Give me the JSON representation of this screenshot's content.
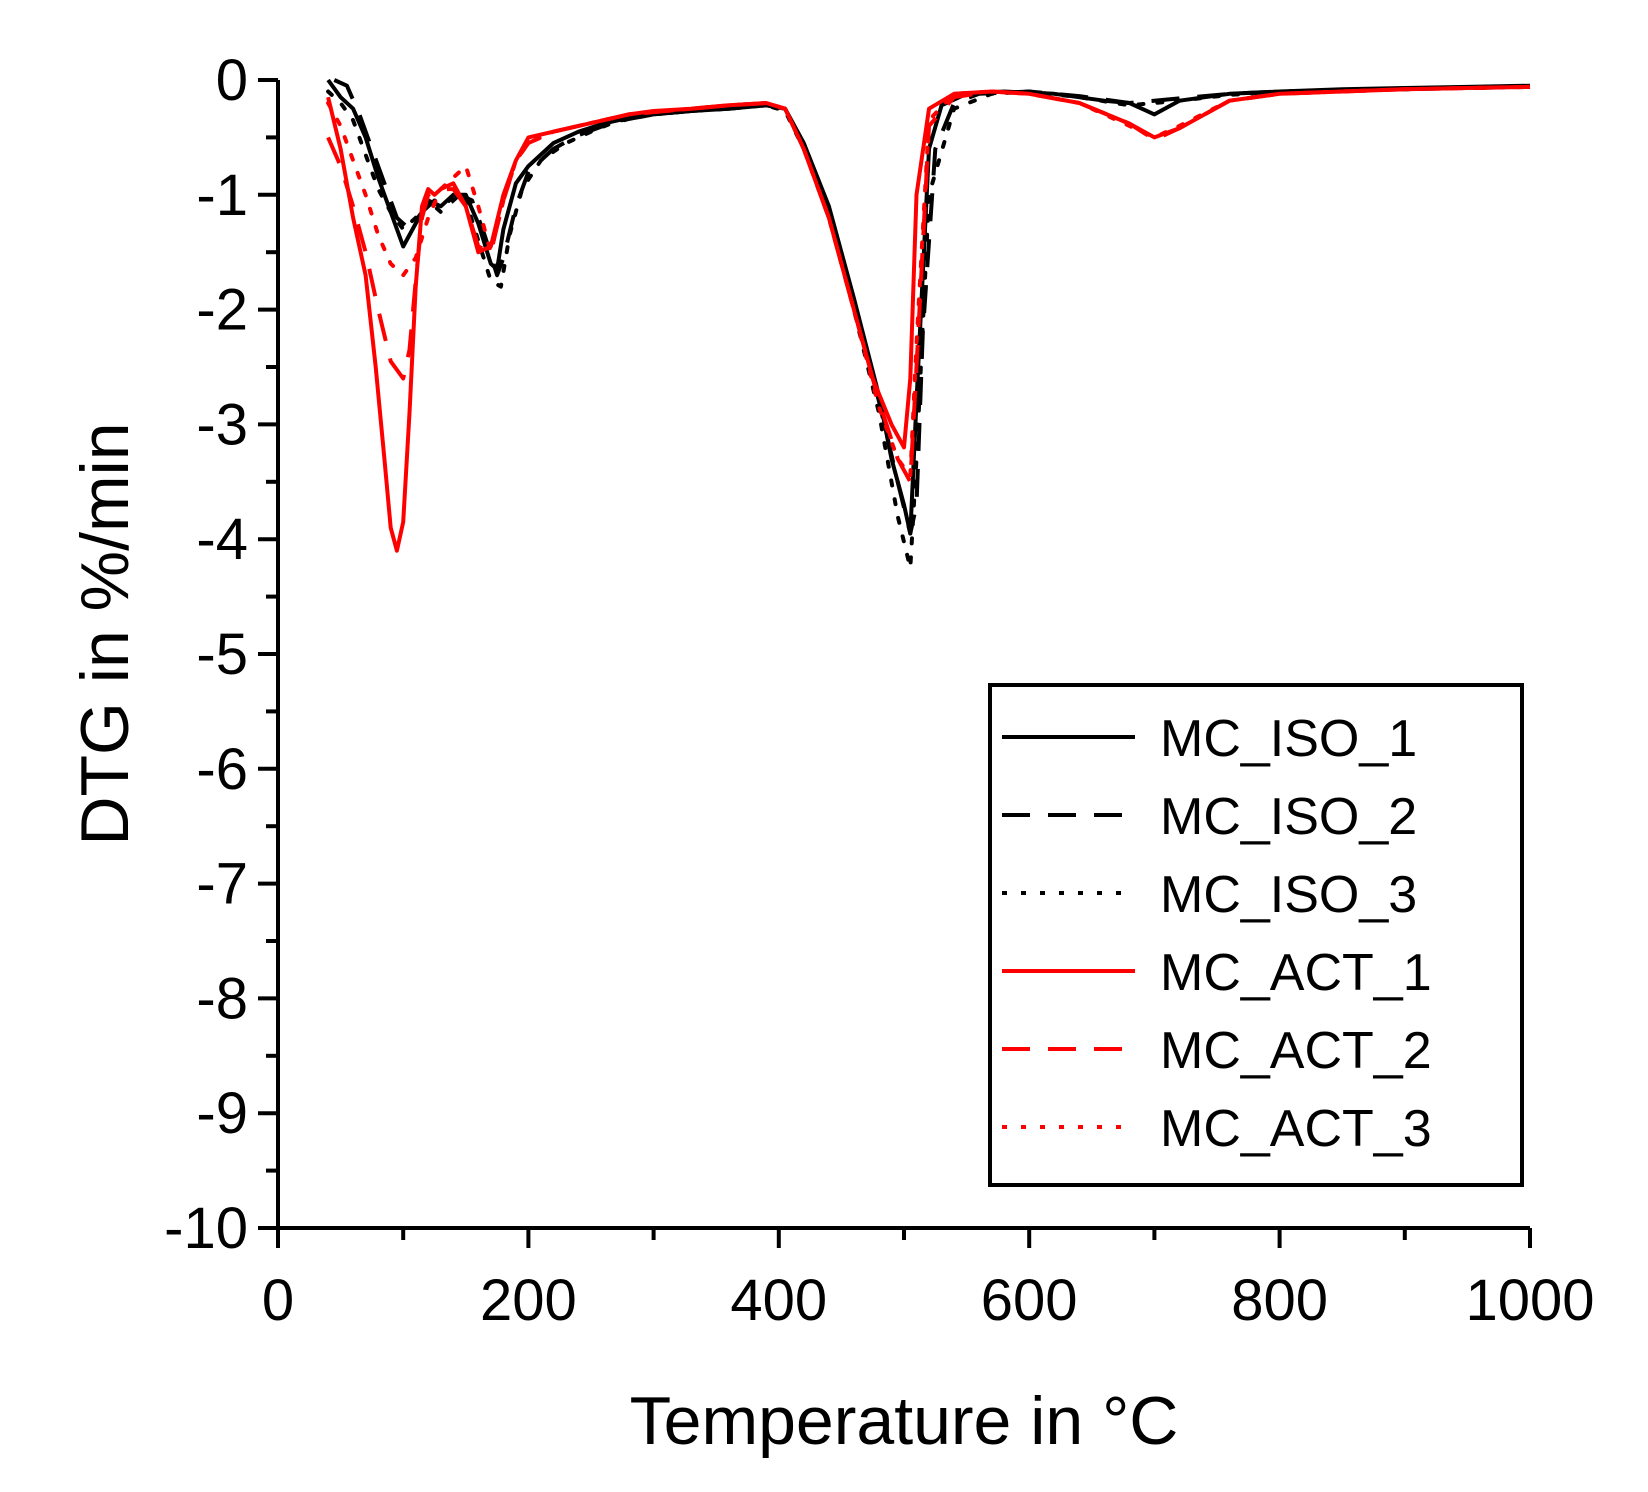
{
  "chart_data": {
    "type": "line",
    "title": "",
    "xlabel": "Temperature in °C",
    "ylabel": "DTG in %/min",
    "xlim": [
      0,
      1000
    ],
    "ylim": [
      -10,
      0
    ],
    "xticks": [
      0,
      200,
      400,
      600,
      800,
      1000
    ],
    "yticks": [
      0,
      -1,
      -2,
      -3,
      -4,
      -5,
      -6,
      -7,
      -8,
      -9,
      -10
    ],
    "legend_position": "bottom-right",
    "series": [
      {
        "name": "MC_ISO_1",
        "color": "#000000",
        "dash": "solid",
        "x": [
          40,
          50,
          60,
          70,
          80,
          90,
          100,
          110,
          120,
          130,
          140,
          150,
          160,
          170,
          175,
          180,
          190,
          200,
          220,
          240,
          260,
          280,
          300,
          330,
          360,
          390,
          405,
          420,
          440,
          460,
          480,
          490,
          500,
          505,
          510,
          520,
          530,
          550,
          580,
          620,
          660,
          680,
          700,
          720,
          760,
          800,
          850,
          900,
          950,
          1000
        ],
        "y": [
          0.0,
          -0.15,
          -0.25,
          -0.5,
          -0.85,
          -1.15,
          -1.45,
          -1.25,
          -1.05,
          -1.1,
          -1.0,
          -1.0,
          -1.25,
          -1.6,
          -1.65,
          -1.3,
          -0.9,
          -0.75,
          -0.55,
          -0.45,
          -0.38,
          -0.33,
          -0.3,
          -0.27,
          -0.25,
          -0.22,
          -0.25,
          -0.55,
          -1.1,
          -1.9,
          -2.75,
          -3.3,
          -3.7,
          -3.95,
          -2.8,
          -0.6,
          -0.22,
          -0.12,
          -0.1,
          -0.12,
          -0.18,
          -0.2,
          -0.3,
          -0.18,
          -0.12,
          -0.1,
          -0.08,
          -0.07,
          -0.06,
          -0.05
        ]
      },
      {
        "name": "MC_ISO_2",
        "color": "#000000",
        "dash": "dashed",
        "x": [
          45,
          55,
          65,
          75,
          85,
          95,
          105,
          115,
          125,
          135,
          145,
          155,
          165,
          175,
          180,
          190,
          200,
          220,
          240,
          260,
          280,
          300,
          330,
          360,
          390,
          405,
          420,
          440,
          460,
          480,
          495,
          505,
          510,
          515,
          525,
          540,
          560,
          600,
          640,
          680,
          720,
          760,
          800,
          850,
          900,
          950,
          1000
        ],
        "y": [
          0.0,
          -0.05,
          -0.3,
          -0.6,
          -0.9,
          -1.2,
          -1.3,
          -1.15,
          -1.05,
          -1.1,
          -1.0,
          -1.05,
          -1.35,
          -1.7,
          -1.55,
          -1.1,
          -0.8,
          -0.6,
          -0.48,
          -0.4,
          -0.34,
          -0.3,
          -0.27,
          -0.25,
          -0.22,
          -0.25,
          -0.6,
          -1.15,
          -1.95,
          -2.8,
          -3.5,
          -3.95,
          -3.7,
          -2.2,
          -0.6,
          -0.2,
          -0.12,
          -0.1,
          -0.14,
          -0.2,
          -0.16,
          -0.12,
          -0.1,
          -0.09,
          -0.08,
          -0.07,
          -0.06
        ]
      },
      {
        "name": "MC_ISO_3",
        "color": "#000000",
        "dash": "dotted",
        "x": [
          40,
          50,
          60,
          70,
          80,
          90,
          100,
          110,
          120,
          130,
          140,
          150,
          160,
          170,
          178,
          185,
          195,
          210,
          230,
          250,
          270,
          300,
          330,
          360,
          390,
          405,
          420,
          440,
          460,
          480,
          495,
          505,
          510,
          520,
          540,
          570,
          600,
          640,
          680,
          720,
          760,
          800,
          850,
          900,
          950,
          1000
        ],
        "y": [
          -0.1,
          -0.2,
          -0.35,
          -0.65,
          -0.95,
          -1.15,
          -1.3,
          -1.2,
          -1.05,
          -1.15,
          -1.0,
          -1.05,
          -1.4,
          -1.75,
          -1.8,
          -1.35,
          -0.95,
          -0.7,
          -0.55,
          -0.45,
          -0.36,
          -0.3,
          -0.27,
          -0.25,
          -0.22,
          -0.27,
          -0.6,
          -1.2,
          -2.0,
          -2.9,
          -3.8,
          -4.25,
          -3.3,
          -1.0,
          -0.25,
          -0.12,
          -0.1,
          -0.15,
          -0.22,
          -0.18,
          -0.13,
          -0.1,
          -0.09,
          -0.08,
          -0.07,
          -0.06
        ]
      },
      {
        "name": "MC_ACT_1",
        "color": "#ff0000",
        "dash": "solid",
        "x": [
          40,
          50,
          60,
          70,
          78,
          85,
          90,
          95,
          100,
          105,
          110,
          115,
          120,
          125,
          130,
          140,
          150,
          160,
          170,
          180,
          190,
          200,
          220,
          240,
          260,
          280,
          300,
          330,
          360,
          390,
          405,
          420,
          440,
          460,
          475,
          490,
          500,
          505,
          510,
          520,
          540,
          570,
          600,
          640,
          680,
          700,
          720,
          760,
          800,
          850,
          900,
          950,
          1000
        ],
        "y": [
          -0.15,
          -0.6,
          -1.2,
          -1.7,
          -2.5,
          -3.3,
          -3.9,
          -4.1,
          -3.85,
          -2.9,
          -1.8,
          -1.1,
          -0.95,
          -1.0,
          -0.95,
          -0.9,
          -1.1,
          -1.5,
          -1.45,
          -1.0,
          -0.7,
          -0.5,
          -0.45,
          -0.4,
          -0.35,
          -0.3,
          -0.27,
          -0.25,
          -0.22,
          -0.2,
          -0.25,
          -0.6,
          -1.2,
          -2.0,
          -2.6,
          -3.0,
          -3.2,
          -2.6,
          -1.0,
          -0.25,
          -0.12,
          -0.1,
          -0.12,
          -0.2,
          -0.38,
          -0.5,
          -0.42,
          -0.18,
          -0.12,
          -0.1,
          -0.08,
          -0.07,
          -0.06
        ]
      },
      {
        "name": "MC_ACT_2",
        "color": "#ff0000",
        "dash": "dashed",
        "x": [
          40,
          50,
          60,
          70,
          80,
          90,
          100,
          105,
          110,
          115,
          120,
          130,
          140,
          150,
          160,
          170,
          180,
          190,
          200,
          220,
          240,
          260,
          280,
          300,
          330,
          360,
          390,
          405,
          420,
          440,
          460,
          480,
          495,
          505,
          510,
          520,
          540,
          570,
          600,
          640,
          680,
          700,
          720,
          760,
          800,
          850,
          900,
          950,
          1000
        ],
        "y": [
          -0.5,
          -0.75,
          -1.1,
          -1.5,
          -2.0,
          -2.45,
          -2.6,
          -2.35,
          -1.75,
          -1.2,
          -1.0,
          -0.95,
          -0.95,
          -1.1,
          -1.45,
          -1.5,
          -1.05,
          -0.7,
          -0.55,
          -0.45,
          -0.4,
          -0.35,
          -0.3,
          -0.28,
          -0.25,
          -0.22,
          -0.2,
          -0.25,
          -0.6,
          -1.2,
          -2.0,
          -2.8,
          -3.3,
          -3.5,
          -2.5,
          -0.4,
          -0.15,
          -0.1,
          -0.12,
          -0.2,
          -0.38,
          -0.52,
          -0.42,
          -0.18,
          -0.12,
          -0.1,
          -0.08,
          -0.07,
          -0.06
        ]
      },
      {
        "name": "MC_ACT_3",
        "color": "#ff0000",
        "dash": "dotted",
        "x": [
          40,
          50,
          60,
          70,
          80,
          90,
          100,
          110,
          120,
          130,
          140,
          150,
          160,
          170,
          180,
          190,
          200,
          220,
          240,
          260,
          280,
          300,
          330,
          360,
          390,
          405,
          420,
          440,
          460,
          480,
          495,
          505,
          510,
          520,
          540,
          570,
          600,
          640,
          680,
          700,
          720,
          760,
          800,
          850,
          900,
          950,
          1000
        ],
        "y": [
          -0.2,
          -0.4,
          -0.7,
          -1.0,
          -1.35,
          -1.6,
          -1.7,
          -1.55,
          -1.2,
          -0.95,
          -0.85,
          -0.75,
          -1.1,
          -1.5,
          -1.05,
          -0.7,
          -0.55,
          -0.45,
          -0.4,
          -0.35,
          -0.3,
          -0.28,
          -0.25,
          -0.22,
          -0.2,
          -0.25,
          -0.6,
          -1.2,
          -2.0,
          -2.85,
          -3.3,
          -3.45,
          -2.3,
          -0.35,
          -0.12,
          -0.1,
          -0.12,
          -0.2,
          -0.4,
          -0.5,
          -0.4,
          -0.18,
          -0.12,
          -0.1,
          -0.08,
          -0.07,
          -0.06
        ]
      }
    ]
  }
}
